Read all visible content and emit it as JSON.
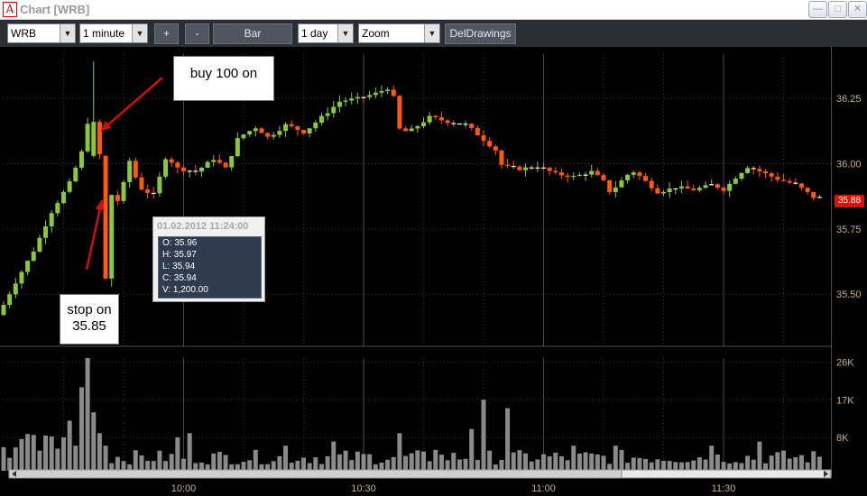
{
  "window": {
    "title": "Chart [WRB]",
    "app_icon": "A",
    "controls": [
      "minimize-icon",
      "maximize-icon",
      "close-icon"
    ]
  },
  "toolbar": {
    "symbol": "WRB",
    "interval": "1 minute",
    "plus_label": "+",
    "minus_label": "-",
    "type_label": "Bar",
    "range": "1 day",
    "zoom": "Zoom",
    "del_drawings_label": "DelDrawings"
  },
  "colors": {
    "up": "#8cc63e",
    "down": "#ff5a10",
    "volume": "#8a8a8a",
    "last_price_tag": "#e01000",
    "axis_text": "#c8b088"
  },
  "chart_data": [
    {
      "type": "candlestick",
      "symbol": "WRB",
      "interval": "1 minute",
      "y_ticks": [
        "36.25",
        "36.00",
        "35.75",
        "35.50"
      ],
      "ylim": [
        35.3,
        36.42
      ],
      "x_ticks": [
        "10:00",
        "10:30",
        "11:00",
        "11:30"
      ],
      "last_price": "35.88",
      "grid": true
    },
    {
      "type": "bar",
      "series": "volume",
      "y_ticks": [
        "26K",
        "17K",
        "8K"
      ],
      "ylim": [
        0,
        27000
      ]
    }
  ],
  "tooltip": {
    "timestamp": "01.02.2012 11:24:00",
    "open": "O: 35.96",
    "high": "H: 35.97",
    "low": "L: 35.94",
    "close": "C: 35.94",
    "volume": "V: 1,200.00"
  },
  "annotations": {
    "buy": "buy 100 on",
    "stop_line1": "stop on",
    "stop_line2": "35.85"
  }
}
